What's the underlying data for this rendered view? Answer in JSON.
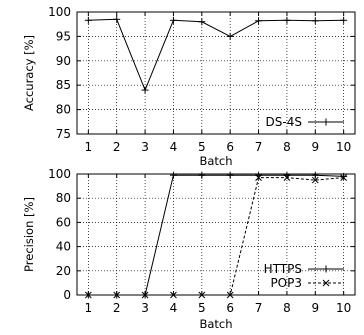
{
  "chart_data": [
    {
      "type": "line",
      "title": "",
      "xlabel": "Batch",
      "ylabel": "Accuracy [%]",
      "xlim": [
        0.6,
        10.4
      ],
      "ylim": [
        75,
        100
      ],
      "x_ticks": [
        1,
        2,
        3,
        4,
        5,
        6,
        7,
        8,
        9,
        10
      ],
      "y_ticks": [
        75,
        80,
        85,
        90,
        95,
        100
      ],
      "grid": true,
      "legend_position": "bottom-right",
      "series": [
        {
          "name": "DS-4S",
          "line_style": "solid",
          "marker": "plus",
          "color": "#000000",
          "x": [
            1,
            2,
            3,
            4,
            5,
            6,
            7,
            8,
            9,
            10
          ],
          "values": [
            98.3,
            98.5,
            84,
            98.3,
            98.0,
            95.0,
            98.2,
            98.3,
            98.2,
            98.3
          ]
        }
      ]
    },
    {
      "type": "line",
      "title": "",
      "xlabel": "Batch",
      "ylabel": "Precision [%]",
      "xlim": [
        0.6,
        10.4
      ],
      "ylim": [
        0,
        100
      ],
      "x_ticks": [
        1,
        2,
        3,
        4,
        5,
        6,
        7,
        8,
        9,
        10
      ],
      "y_ticks": [
        0,
        20,
        40,
        60,
        80,
        100
      ],
      "grid": true,
      "legend_position": "bottom-right",
      "series": [
        {
          "name": "HTTPS",
          "line_style": "solid",
          "marker": "plus",
          "color": "#000000",
          "x": [
            1,
            2,
            3,
            4,
            5,
            6,
            7,
            8,
            9,
            10
          ],
          "values": [
            0,
            0,
            0,
            99,
            99,
            99,
            99,
            99,
            99,
            98
          ]
        },
        {
          "name": "POP3",
          "line_style": "dashed",
          "marker": "cross",
          "color": "#000000",
          "x": [
            1,
            2,
            3,
            4,
            5,
            6,
            7,
            8,
            9,
            10
          ],
          "values": [
            0,
            0,
            0,
            0,
            0,
            0,
            97,
            97,
            95,
            97
          ]
        }
      ]
    }
  ]
}
